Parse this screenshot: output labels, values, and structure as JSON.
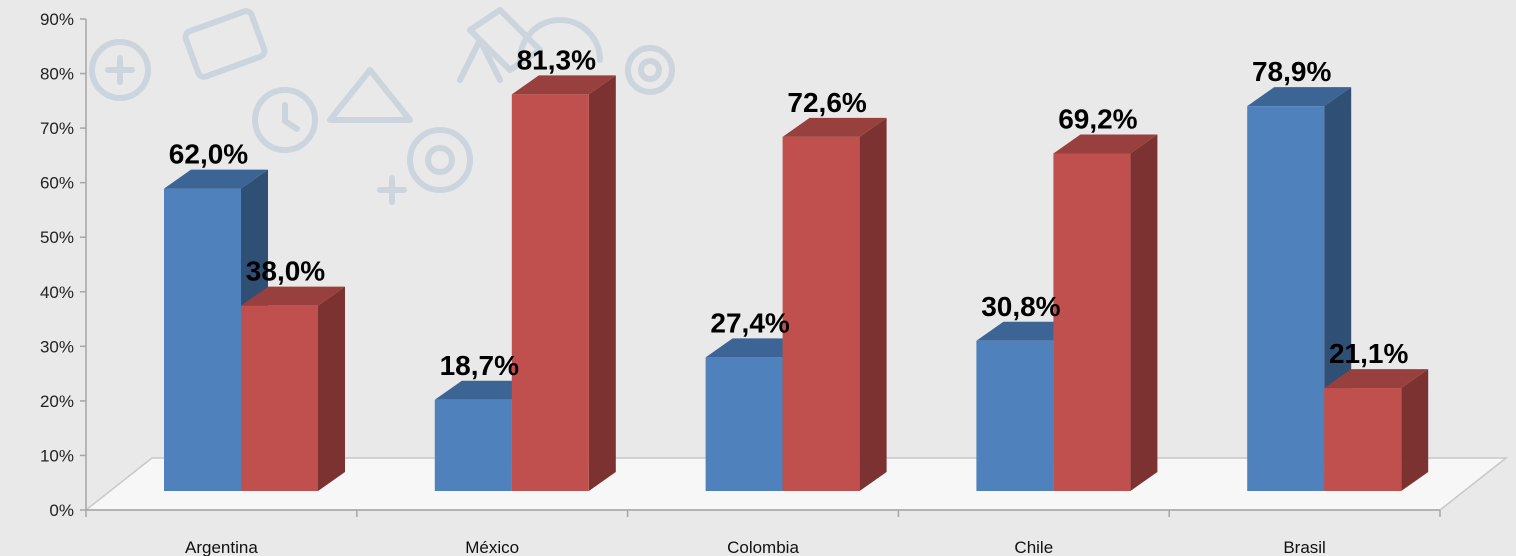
{
  "colors": {
    "series1_front": "#4f81bd",
    "series1_top": "#3c6494",
    "series1_side": "#2f4f75",
    "series2_front": "#c0504d",
    "series2_top": "#98403d",
    "series2_side": "#7b3230",
    "background": "#e9e9e9",
    "floor": "#f7f7f7",
    "axis": "#a6a6a6"
  },
  "chart_data": {
    "type": "bar",
    "style": "3d-clustered",
    "categories": [
      "Argentina",
      "México",
      "Colombia",
      "Chile",
      "Brasil"
    ],
    "series": [
      {
        "values": [
          62.0,
          18.7,
          27.4,
          30.8,
          78.9
        ],
        "labels": [
          "62,0%",
          "18,7%",
          "27,4%",
          "30,8%",
          "78,9%"
        ]
      },
      {
        "values": [
          38.0,
          81.3,
          72.6,
          69.2,
          21.1
        ],
        "labels": [
          "38,0%",
          "81,3%",
          "72,6%",
          "69,2%",
          "21,1%"
        ]
      }
    ],
    "y_ticks": [
      "0%",
      "10%",
      "20%",
      "30%",
      "40%",
      "50%",
      "60%",
      "70%",
      "80%",
      "90%"
    ],
    "ylim": [
      0,
      90
    ],
    "title": "",
    "xlabel": "",
    "ylabel": "",
    "grid": false,
    "legend": "none"
  }
}
